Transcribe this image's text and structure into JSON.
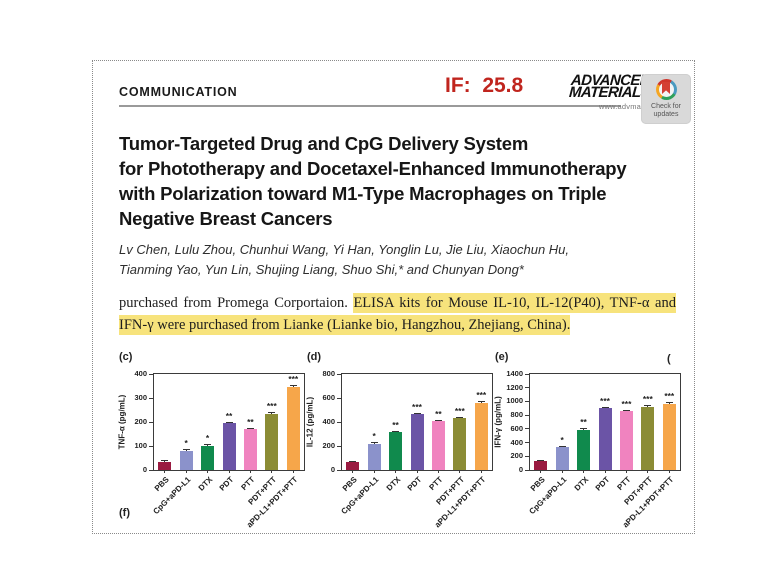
{
  "header": {
    "section_label": "COMMUNICATION",
    "impact_factor": "IF:  25.8",
    "impact_factor_color": "#c0251e",
    "journal_line1": "ADVANCED",
    "journal_line2": "MATERIALS",
    "journal_url": "www.advmat.d",
    "badge_line1": "Check for",
    "badge_line2": "updates"
  },
  "article": {
    "title_lines": [
      "Tumor-Targeted Drug and CpG Delivery System",
      "for Phototherapy and Docetaxel-Enhanced Immunotherapy",
      "with Polarization toward M1-Type Macrophages on Triple",
      "Negative Breast Cancers"
    ],
    "authors_line1": "Lv Chen, Lulu Zhou, Chunhui Wang, Yi Han, Yonglin Lu, Jie Liu, Xiaochun Hu,",
    "authors_line2": "Tianming Yao, Yun Lin, Shujing Liang, Shuo Shi,* and Chunyan Dong*"
  },
  "body": {
    "prefix": "purchased from Promega Corportaion. ",
    "highlight": "ELISA kits for Mouse IL-10, IL-12(P40), TNF-α and IFN-γ were purchased from Lianke (Lianke bio, Hangzhou, Zhejiang, China).",
    "highlight_color": "#f7e37c"
  },
  "figure": {
    "panel_f_label": "(f)",
    "cut_panel_label": "("
  },
  "chart_data": [
    {
      "type": "bar",
      "panel": "(c)",
      "ylabel": "TNF-α (pg/mL)",
      "ylim": [
        0,
        400
      ],
      "yticks": [
        0,
        100,
        200,
        300,
        400
      ],
      "categories": [
        "PBS",
        "CpG+aPD-L1",
        "DTX",
        "PDT",
        "PTT",
        "PDT+PTT",
        "aPD-L1+PDT+PTT"
      ],
      "values": [
        35,
        80,
        102,
        196,
        170,
        232,
        345
      ],
      "errors": [
        5,
        6,
        7,
        6,
        7,
        10,
        8
      ],
      "significance": [
        "",
        "*",
        "*",
        "**",
        "**",
        "***",
        "***"
      ],
      "bar_colors": [
        "#9a1b41",
        "#8b92cb",
        "#108a4d",
        "#6b54a6",
        "#f083bf",
        "#8b8c35",
        "#f6a64a"
      ],
      "grid": false,
      "legend": false
    },
    {
      "type": "bar",
      "panel": "(d)",
      "ylabel": "IL-12 (pg/mL)",
      "ylim": [
        0,
        800
      ],
      "yticks": [
        0,
        200,
        400,
        600,
        800
      ],
      "categories": [
        "PBS",
        "CpG+aPD-L1",
        "DTX",
        "PDT",
        "PTT",
        "PDT+PTT",
        "aPD-L1+PDT+PTT"
      ],
      "values": [
        70,
        218,
        315,
        465,
        408,
        432,
        562
      ],
      "errors": [
        8,
        12,
        14,
        10,
        12,
        10,
        14
      ],
      "significance": [
        "",
        "*",
        "**",
        "***",
        "**",
        "***",
        "***"
      ],
      "bar_colors": [
        "#9a1b41",
        "#8b92cb",
        "#108a4d",
        "#6b54a6",
        "#f083bf",
        "#8b8c35",
        "#f6a64a"
      ],
      "grid": false,
      "legend": false
    },
    {
      "type": "bar",
      "panel": "(e)",
      "ylabel": "IFN-γ (pg/mL)",
      "ylim": [
        0,
        1400
      ],
      "yticks": [
        0,
        200,
        400,
        600,
        800,
        1000,
        1200,
        1400
      ],
      "categories": [
        "PBS",
        "CpG+aPD-L1",
        "DTX",
        "PDT",
        "PTT",
        "PDT+PTT",
        "aPD-L1+PDT+PTT"
      ],
      "values": [
        130,
        330,
        590,
        908,
        855,
        922,
        965
      ],
      "errors": [
        10,
        18,
        25,
        15,
        18,
        30,
        25
      ],
      "significance": [
        "",
        "*",
        "**",
        "***",
        "***",
        "***",
        "***"
      ],
      "bar_colors": [
        "#9a1b41",
        "#8b92cb",
        "#108a4d",
        "#6b54a6",
        "#f083bf",
        "#8b8c35",
        "#f6a64a"
      ],
      "grid": false,
      "legend": false
    }
  ]
}
